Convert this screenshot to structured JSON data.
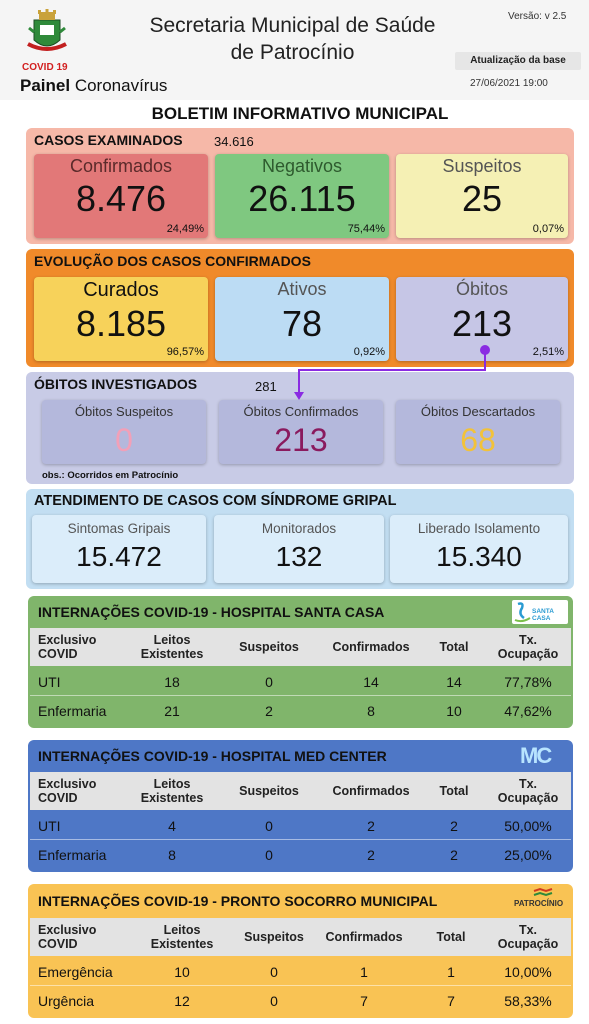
{
  "header": {
    "covid_tag": "COVID 19",
    "painel_bold": "Painel",
    "painel_rest": " Coronavírus",
    "title_line1": "Secretaria Municipal de Saúde",
    "title_line2": "de Patrocínio",
    "versao": "Versão: v 2.5",
    "atualizacao_label": "Atualização da base",
    "atualizacao_date": "27/06/2021 19:00"
  },
  "boletim_title": "BOLETIM INFORMATIVO MUNICIPAL",
  "casos_examinados": {
    "title": "CASOS EXAMINADOS",
    "total": "34.616",
    "cards": [
      {
        "label": "Confirmados",
        "value": "8.476",
        "pct": "24,49%"
      },
      {
        "label": "Negativos",
        "value": "26.115",
        "pct": "75,44%"
      },
      {
        "label": "Suspeitos",
        "value": "25",
        "pct": "0,07%"
      }
    ]
  },
  "evolucao": {
    "title": "EVOLUÇÃO DOS CASOS CONFIRMADOS",
    "cards": [
      {
        "label": "Curados",
        "value": "8.185",
        "pct": "96,57%"
      },
      {
        "label": "Ativos",
        "value": "78",
        "pct": "0,92%"
      },
      {
        "label": "Óbitos",
        "value": "213",
        "pct": "2,51%"
      }
    ]
  },
  "obitos_investigados": {
    "title": "ÓBITOS INVESTIGADOS",
    "total": "281",
    "obs": "obs.: Ocorridos em Patrocínio",
    "cards": [
      {
        "label": "Óbitos Suspeitos",
        "value": "0"
      },
      {
        "label": "Óbitos Confirmados",
        "value": "213"
      },
      {
        "label": "Óbitos Descartados",
        "value": "68"
      }
    ]
  },
  "atendimento": {
    "title": "ATENDIMENTO DE CASOS COM SÍNDROME GRIPAL",
    "cards": [
      {
        "label": "Sintomas Gripais",
        "value": "15.472"
      },
      {
        "label": "Monitorados",
        "value": "132"
      },
      {
        "label": "Liberado Isolamento",
        "value": "15.340"
      }
    ]
  },
  "table_headers": {
    "col1": "Exclusivo COVID",
    "col2": "Leitos Existentes",
    "col3": "Suspeitos",
    "col4": "Confirmados",
    "col5": "Total",
    "col6": "Tx. Ocupação"
  },
  "santa_casa": {
    "title": "INTERNAÇÕES COVID-19 - HOSPITAL SANTA CASA",
    "logo_text": "SANTA CASA",
    "rows": [
      {
        "tipo": "UTI",
        "leitos": "18",
        "suspeitos": "0",
        "confirmados": "14",
        "total": "14",
        "tx": "77,78%"
      },
      {
        "tipo": "Enfermaria",
        "leitos": "21",
        "suspeitos": "2",
        "confirmados": "8",
        "total": "10",
        "tx": "47,62%"
      }
    ]
  },
  "med_center": {
    "title": "INTERNAÇÕES COVID-19 - HOSPITAL MED CENTER",
    "logo_text": "MC",
    "rows": [
      {
        "tipo": "UTI",
        "leitos": "4",
        "suspeitos": "0",
        "confirmados": "2",
        "total": "2",
        "tx": "50,00%"
      },
      {
        "tipo": "Enfermaria",
        "leitos": "8",
        "suspeitos": "0",
        "confirmados": "2",
        "total": "2",
        "tx": "25,00%"
      }
    ]
  },
  "pronto_socorro": {
    "title": "INTERNAÇÕES COVID-19 - PRONTO SOCORRO MUNICIPAL",
    "logo_text": "PATROCÍNIO",
    "rows": [
      {
        "tipo": "Emergência",
        "leitos": "10",
        "suspeitos": "0",
        "confirmados": "1",
        "total": "1",
        "tx": "10,00%"
      },
      {
        "tipo": "Urgência",
        "leitos": "12",
        "suspeitos": "0",
        "confirmados": "7",
        "total": "7",
        "tx": "58,33%"
      }
    ]
  },
  "colors": {
    "casos_bg": "#f6b8a8",
    "confirmados": "#e27878",
    "negativos": "#7fc880",
    "suspeitos": "#f5f0b4",
    "evolucao_bg": "#f08a2a",
    "curados": "#f7d25a",
    "ativos": "#bcdcf4",
    "obitos": "#c6c6e6",
    "investigados_bg": "#c8cbe6",
    "obitos_card": "#b4b8dc",
    "atendimento_bg": "#c2def2",
    "atendimento_card": "#dbedfa",
    "santa_casa_bg": "#80b56b",
    "med_center_bg": "#4e77c6",
    "pronto_socorro_bg": "#f9c354",
    "header_row": "#e3e3e3",
    "connector": "#8a2be2"
  }
}
